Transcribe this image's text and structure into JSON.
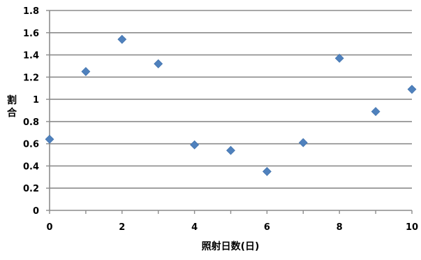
{
  "chart_data": {
    "type": "scatter",
    "title": "",
    "xlabel": "照射日数(日)",
    "ylabel": "割合",
    "xlim": [
      0,
      10
    ],
    "ylim": [
      0,
      1.8
    ],
    "x_ticks": [
      "0",
      "2",
      "4",
      "6",
      "8",
      "10"
    ],
    "y_ticks": [
      "0",
      "0.2",
      "0.4",
      "0.6",
      "0.8",
      "1",
      "1.2",
      "1.4",
      "1.6",
      "1.8"
    ],
    "grid": true,
    "legend": "none",
    "marker": "diamond",
    "color": "#4F81BD",
    "x": [
      0,
      1,
      2,
      3,
      4,
      5,
      6,
      7,
      8,
      9,
      10
    ],
    "y": [
      0.64,
      1.25,
      1.54,
      1.32,
      0.59,
      0.54,
      0.35,
      0.61,
      1.37,
      0.89,
      1.09
    ]
  }
}
